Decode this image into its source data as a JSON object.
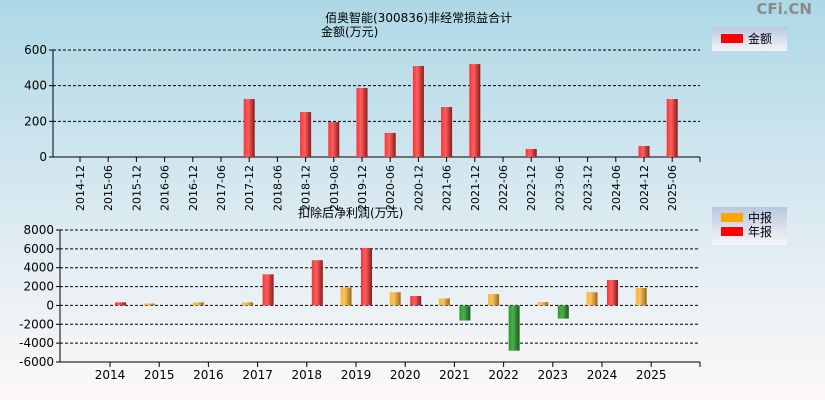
{
  "watermark": "CFi.CN",
  "chart_data": [
    {
      "type": "bar",
      "title": "佰奥智能(300836)非经常损益合计",
      "ylabel": "金额(万元)",
      "categories": [
        "2014-12",
        "2015-06",
        "2015-12",
        "2016-06",
        "2016-12",
        "2017-06",
        "2017-12",
        "2018-06",
        "2018-12",
        "2019-06",
        "2019-12",
        "2020-06",
        "2020-12",
        "2021-06",
        "2021-12",
        "2022-06",
        "2022-12",
        "2023-06",
        "2023-12",
        "2024-06",
        "2024-12",
        "2025-06"
      ],
      "series": [
        {
          "name": "金额",
          "color": "#ff0000",
          "values": [
            0,
            0,
            0,
            0,
            0,
            0,
            325,
            0,
            252,
            196,
            387,
            135,
            510,
            280,
            521,
            0,
            45,
            0,
            0,
            0,
            62,
            325
          ]
        }
      ],
      "ylim": [
        0,
        600
      ],
      "yticks": [
        "0",
        "200",
        "400",
        "600"
      ],
      "grid": true,
      "legend": "right"
    },
    {
      "type": "bar",
      "title": "扣除后净利润(万元)",
      "categories": [
        "2014",
        "2015",
        "2016",
        "2017",
        "2018",
        "2019",
        "2020",
        "2021",
        "2022",
        "2023",
        "2024",
        "2025"
      ],
      "series": [
        {
          "name": "中报",
          "color": "#ffa500",
          "values": [
            null,
            200,
            330,
            330,
            null,
            1900,
            1400,
            750,
            1200,
            350,
            1400,
            1850
          ]
        },
        {
          "name": "年报",
          "color": "#ff0000",
          "values": [
            330,
            null,
            null,
            3300,
            4800,
            6100,
            1000,
            -1600,
            -4800,
            -1400,
            2700,
            null
          ]
        }
      ],
      "negative_color": "#2e8b2e",
      "ylim": [
        -6000,
        8000
      ],
      "yticks": [
        "-6000",
        "-4000",
        "-2000",
        "0",
        "2000",
        "4000",
        "6000",
        "8000"
      ],
      "grid": true,
      "legend": "right"
    }
  ]
}
